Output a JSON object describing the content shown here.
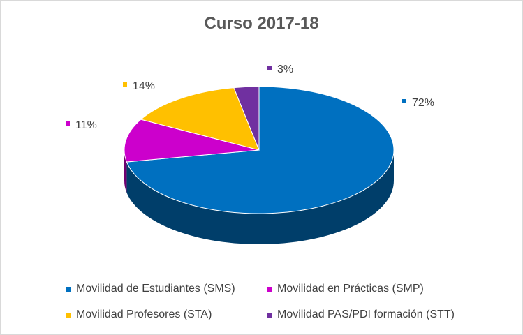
{
  "chart_data": {
    "type": "pie",
    "title": "Curso 2017-18",
    "categories": [
      "Movilidad de Estudiantes (SMS)",
      "Movilidad en Prácticas (SMP)",
      "Movilidad Profesores (STA)",
      "Movilidad PAS/PDI formación (STT)"
    ],
    "values": [
      72,
      11,
      14,
      3
    ],
    "labels": [
      "72%",
      "11%",
      "14%",
      "3%"
    ],
    "colors": [
      "#0070c0",
      "#cc00cc",
      "#ffc000",
      "#7030a0"
    ],
    "legend_position": "bottom",
    "style": "3d"
  }
}
